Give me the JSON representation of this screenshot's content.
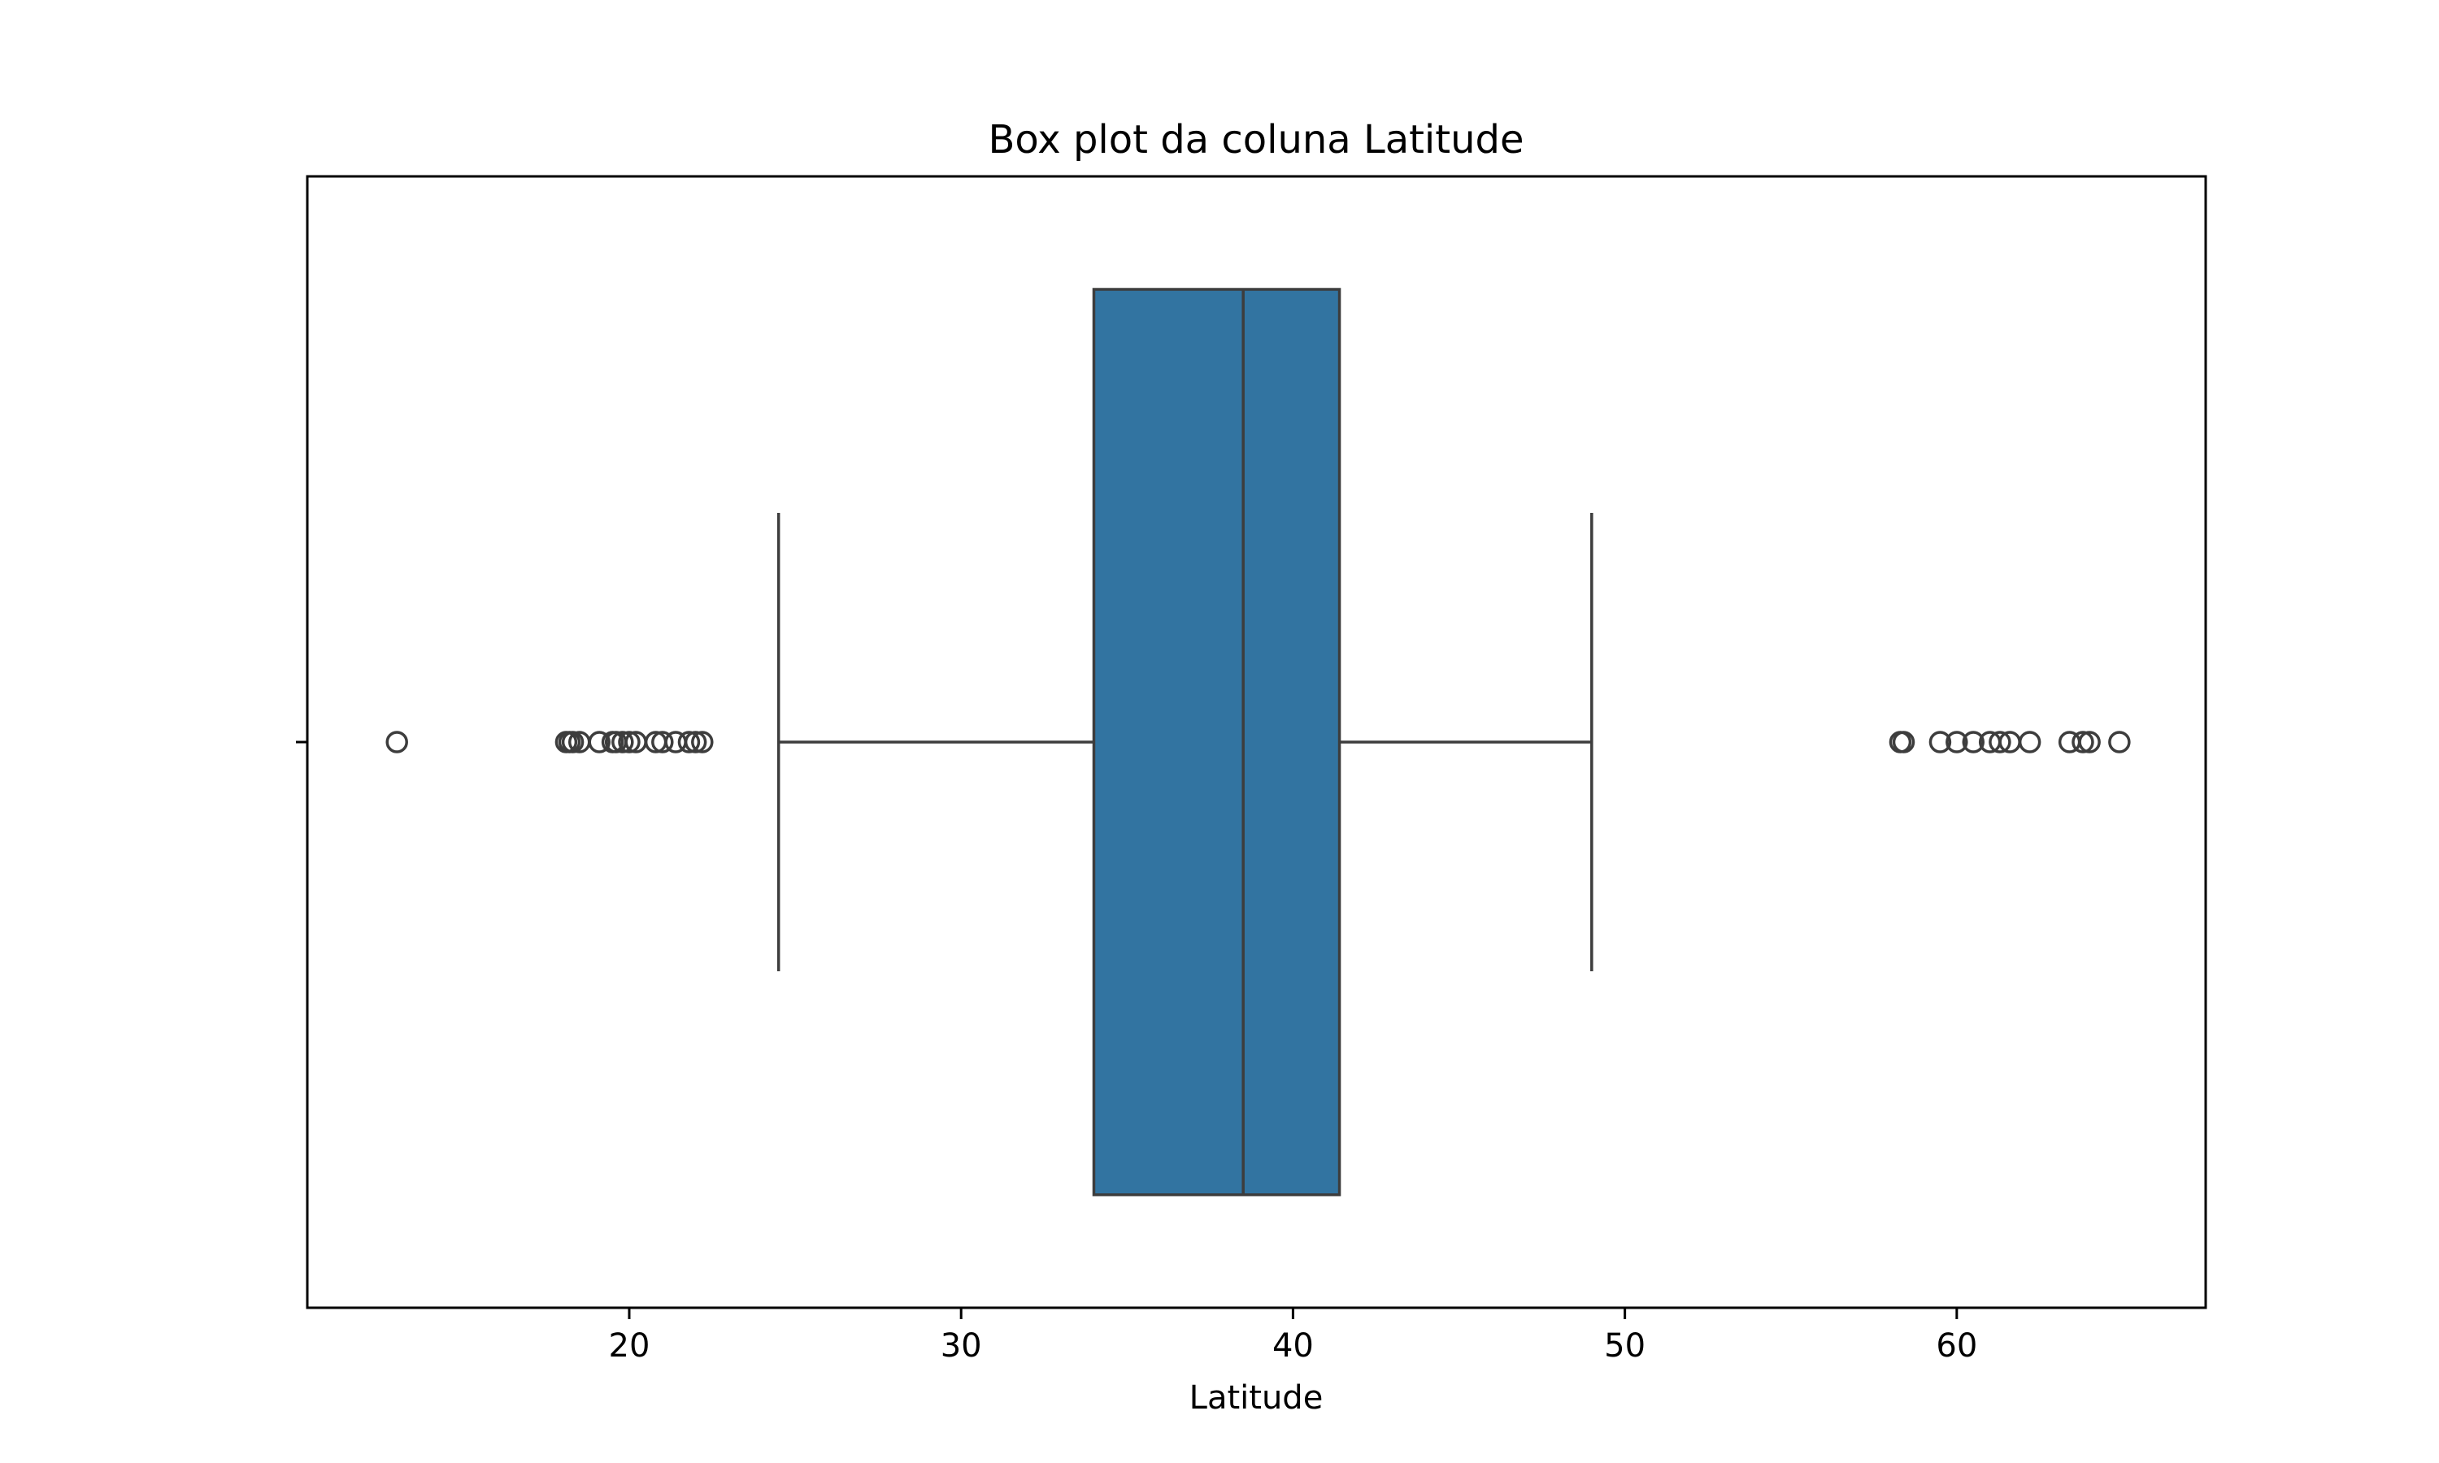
{
  "chart_data": {
    "type": "box",
    "title": "Box plot da coluna Latitude",
    "xlabel": "Latitude",
    "ylabel": "",
    "orientation": "horizontal",
    "xlim": [
      10.3,
      67.5
    ],
    "xticks": [
      20,
      30,
      40,
      50,
      60
    ],
    "xtick_labels": [
      "20",
      "30",
      "40",
      "50",
      "60"
    ],
    "grid": false,
    "colors": {
      "box_fill": "#3274a1",
      "line": "#3d3d3d",
      "frame": "#000000"
    },
    "box": {
      "q1": 34.0,
      "median": 38.5,
      "q3": 41.4,
      "whisker_low": 24.5,
      "whisker_high": 49.0
    },
    "outliers": [
      13.0,
      18.1,
      18.2,
      18.3,
      18.5,
      19.1,
      19.5,
      19.6,
      19.8,
      20.0,
      20.2,
      20.8,
      21.0,
      21.4,
      21.8,
      22.0,
      22.2,
      58.3,
      58.4,
      59.5,
      60.0,
      60.5,
      61.0,
      61.3,
      61.6,
      62.2,
      63.4,
      63.8,
      64.0,
      64.9
    ]
  }
}
